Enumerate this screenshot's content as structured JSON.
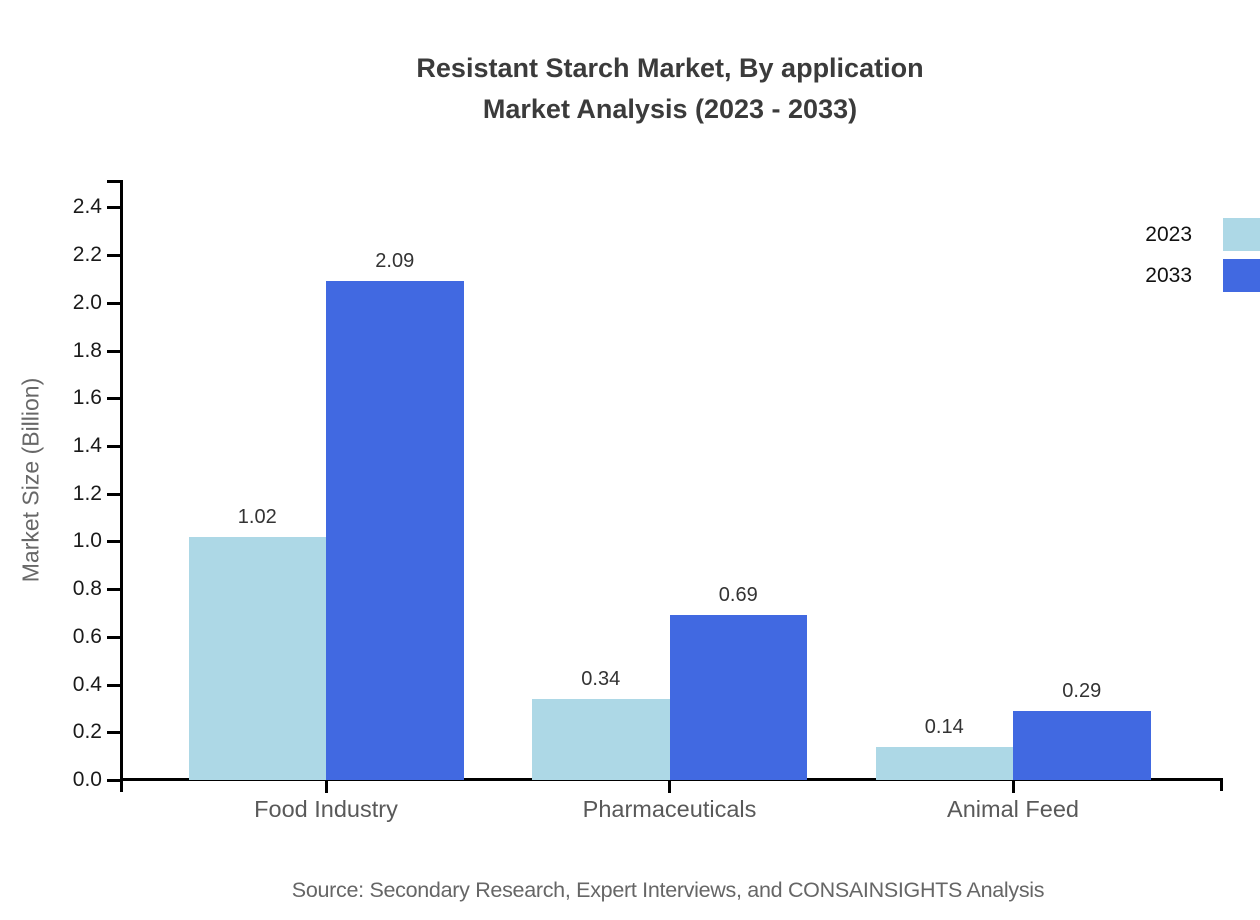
{
  "title": {
    "line1": "Resistant Starch Market, By application",
    "line2": "Market Analysis (2023 - 2033)"
  },
  "source": "Source: Secondary Research, Expert Interviews, and CONSAINSIGHTS Analysis",
  "legend": {
    "items": [
      {
        "label": "2023",
        "color": "#ADD8E6"
      },
      {
        "label": "2033",
        "color": "#4169E1"
      }
    ]
  },
  "colors": {
    "series_2023": "#ADD8E6",
    "series_2033": "#4169E1",
    "axis": "#000000",
    "title_text": "#3b3b3b",
    "category_text": "#595959",
    "source_text": "#666666"
  },
  "chart_data": {
    "type": "bar",
    "title": "Resistant Starch Market, By application Market Analysis (2023 - 2033)",
    "categories": [
      "Food Industry",
      "Pharmaceuticals",
      "Animal Feed"
    ],
    "series": [
      {
        "name": "2023",
        "color": "#ADD8E6",
        "values": [
          1.02,
          0.34,
          0.14
        ]
      },
      {
        "name": "2033",
        "color": "#4169E1",
        "values": [
          2.09,
          0.69,
          0.29
        ]
      }
    ],
    "value_labels": {
      "2023": [
        "1.02",
        "0.34",
        "0.14"
      ],
      "2033": [
        "2.09",
        "0.69",
        "0.29"
      ]
    },
    "xlabel": "",
    "ylabel": "Market Size (Billion)",
    "ylim": [
      0.0,
      2.4
    ],
    "ytick_step": 0.2,
    "ytick_labels": [
      "0.0",
      "0.2",
      "0.4",
      "0.6",
      "0.8",
      "1.0",
      "1.2",
      "1.4",
      "1.6",
      "1.8",
      "2.0",
      "2.2",
      "2.4"
    ],
    "grid": false,
    "legend_position": "top-right"
  }
}
